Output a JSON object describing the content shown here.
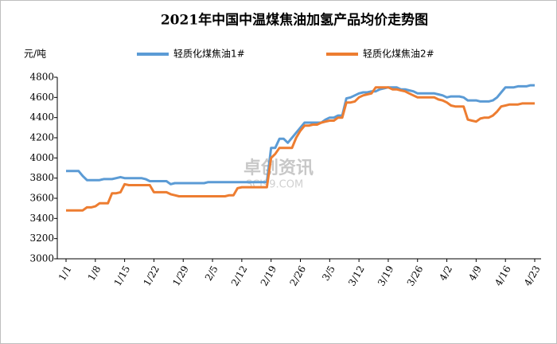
{
  "chart_data": {
    "type": "line",
    "title": "2021年中国中温煤焦油加氢产品均价走势图",
    "y_unit": "元/吨",
    "watermark": "卓创资讯",
    "watermark_sub": "SCI99.COM",
    "ylim": [
      3000,
      4800
    ],
    "yticks": [
      3000,
      3200,
      3400,
      3600,
      3800,
      4000,
      4200,
      4400,
      4600,
      4800
    ],
    "grid": false,
    "legend": "top",
    "categories": [
      "1/1",
      null,
      null,
      null,
      null,
      null,
      null,
      "1/8",
      null,
      null,
      null,
      null,
      null,
      null,
      "1/15",
      null,
      null,
      null,
      null,
      null,
      null,
      "1/22",
      null,
      null,
      null,
      null,
      null,
      null,
      "1/29",
      null,
      null,
      null,
      null,
      null,
      null,
      "2/5",
      null,
      null,
      null,
      null,
      null,
      null,
      "2/12",
      null,
      null,
      null,
      null,
      null,
      null,
      "2/19",
      null,
      null,
      null,
      null,
      null,
      null,
      "2/26",
      null,
      null,
      null,
      null,
      null,
      null,
      "3/5",
      null,
      null,
      null,
      null,
      null,
      null,
      "3/12",
      null,
      null,
      null,
      null,
      null,
      null,
      "3/19",
      null,
      null,
      null,
      null,
      null,
      null,
      "3/26",
      null,
      null,
      null,
      null,
      null,
      null,
      "4/2",
      null,
      null,
      null,
      null,
      null,
      null,
      "4/9",
      null,
      null,
      null,
      null,
      null,
      null,
      "4/16",
      null,
      null,
      null,
      null,
      null,
      null,
      "4/23"
    ],
    "series": [
      {
        "name": "轻质化煤焦油1#",
        "color": "#5b9bd5",
        "values": [
          3870,
          3870,
          3870,
          3870,
          3820,
          3780,
          3780,
          3780,
          3780,
          3790,
          3790,
          3790,
          3800,
          3810,
          3800,
          3800,
          3800,
          3800,
          3800,
          3790,
          3770,
          3770,
          3770,
          3770,
          3770,
          3740,
          3750,
          3750,
          3750,
          3750,
          3750,
          3750,
          3750,
          3750,
          3760,
          3760,
          3760,
          3760,
          3760,
          3760,
          3760,
          3760,
          3760,
          3760,
          3760,
          3760,
          3760,
          3760,
          3760,
          4100,
          4100,
          4190,
          4190,
          4150,
          4200,
          4250,
          4300,
          4350,
          4350,
          4350,
          4350,
          4350,
          4380,
          4400,
          4400,
          4420,
          4420,
          4590,
          4600,
          4620,
          4640,
          4650,
          4650,
          4660,
          4660,
          4680,
          4690,
          4700,
          4700,
          4700,
          4680,
          4680,
          4670,
          4660,
          4640,
          4640,
          4640,
          4640,
          4640,
          4630,
          4620,
          4600,
          4610,
          4610,
          4610,
          4600,
          4570,
          4570,
          4570,
          4560,
          4560,
          4560,
          4570,
          4600,
          4650,
          4700,
          4700,
          4700,
          4710,
          4710,
          4710,
          4720,
          4720
        ]
      },
      {
        "name": "轻质化煤焦油2#",
        "color": "#ed7d31",
        "values": [
          3480,
          3480,
          3480,
          3480,
          3480,
          3510,
          3510,
          3520,
          3550,
          3550,
          3550,
          3650,
          3650,
          3660,
          3740,
          3730,
          3730,
          3730,
          3730,
          3730,
          3730,
          3660,
          3660,
          3660,
          3660,
          3640,
          3630,
          3620,
          3620,
          3620,
          3620,
          3620,
          3620,
          3620,
          3620,
          3620,
          3620,
          3620,
          3620,
          3630,
          3630,
          3700,
          3710,
          3710,
          3710,
          3710,
          3710,
          3710,
          3710,
          4000,
          4040,
          4100,
          4100,
          4100,
          4100,
          4200,
          4270,
          4320,
          4320,
          4330,
          4330,
          4350,
          4360,
          4370,
          4370,
          4400,
          4400,
          4550,
          4550,
          4560,
          4600,
          4620,
          4630,
          4640,
          4700,
          4700,
          4700,
          4700,
          4680,
          4680,
          4670,
          4660,
          4640,
          4620,
          4600,
          4600,
          4600,
          4600,
          4600,
          4580,
          4570,
          4550,
          4520,
          4510,
          4510,
          4510,
          4380,
          4370,
          4360,
          4390,
          4400,
          4400,
          4420,
          4460,
          4510,
          4520,
          4530,
          4530,
          4530,
          4540,
          4540,
          4540,
          4540
        ]
      }
    ]
  }
}
